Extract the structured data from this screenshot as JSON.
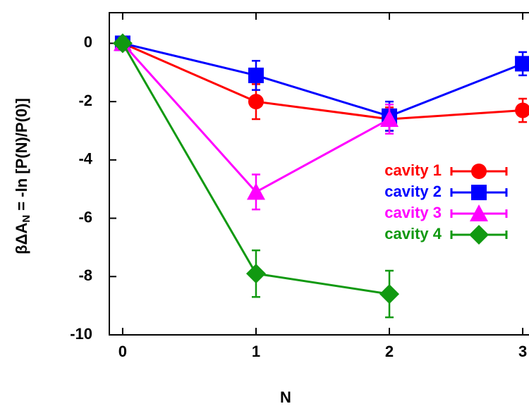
{
  "chart_data": {
    "type": "line",
    "x_label": "N",
    "y_label": {
      "main": "βΔA",
      "sub": "N",
      "rest": " = -ln [P(N)/P(0)]"
    },
    "x": [
      0,
      1,
      2,
      3
    ],
    "series": [
      {
        "name": "cavity 1",
        "color": "#ff0000",
        "marker": "circle",
        "values": [
          0,
          -2.0,
          -2.6,
          -2.3
        ],
        "errors": [
          0.2,
          0.6,
          0.4,
          0.4
        ]
      },
      {
        "name": "cavity 2",
        "color": "#0000ff",
        "marker": "square",
        "values": [
          0,
          -1.1,
          -2.5,
          -0.7
        ],
        "errors": [
          0.2,
          0.5,
          0.5,
          0.4
        ]
      },
      {
        "name": "cavity 3",
        "color": "#ff00ff",
        "marker": "triangle",
        "values": [
          0,
          -5.1,
          -2.6,
          null
        ],
        "errors": [
          0.2,
          0.6,
          0.5,
          null
        ]
      },
      {
        "name": "cavity 4",
        "color": "#119911",
        "marker": "diamond",
        "values": [
          0,
          -7.9,
          -8.6,
          null
        ],
        "errors": [
          0.2,
          0.8,
          0.8,
          null
        ]
      }
    ],
    "xlim": [
      -0.1,
      3.1
    ],
    "ylim": [
      -10,
      1.05
    ],
    "xticks": [
      0,
      1,
      2,
      3
    ],
    "yticks": [
      0,
      -2,
      -4,
      -6,
      -8,
      -10
    ],
    "legend": "right"
  }
}
